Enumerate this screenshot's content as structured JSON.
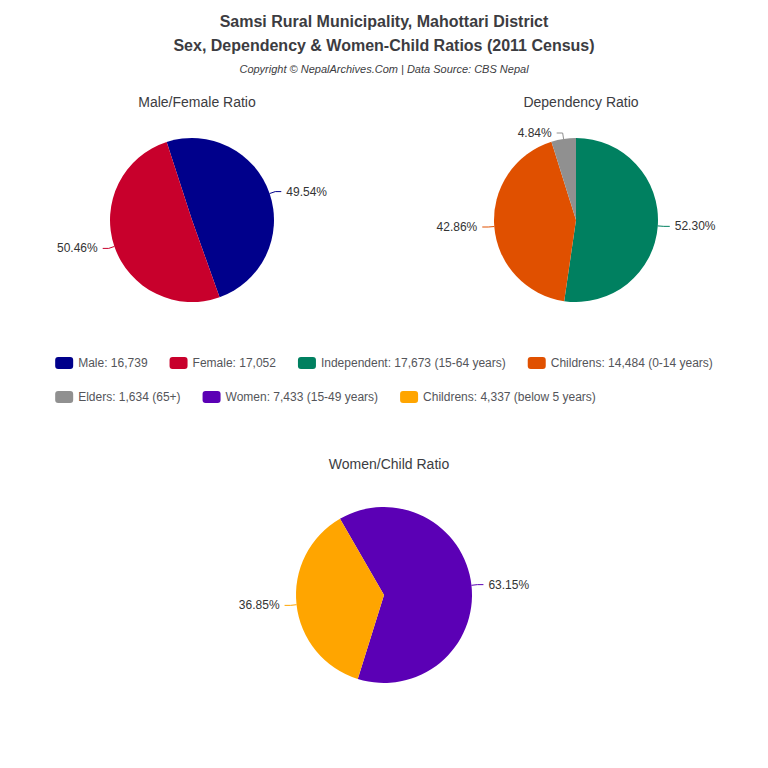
{
  "title": "Samsi Rural Municipality, Mahottari District",
  "subtitle": "Sex, Dependency & Women-Child Ratios (2011 Census)",
  "annotations": [
    "Copyright © NepalArchives.Com | Data Source: CBS Nepal"
  ],
  "legend": "center",
  "chart_data": [
    {
      "type": "pie",
      "title": "Male/Female Ratio",
      "categories": [
        "Male: 16,739",
        "Female: 17,052"
      ],
      "values": [
        49.54,
        50.46
      ],
      "value_labels": [
        "49.54%",
        "50.46%"
      ],
      "colors": [
        "#00008B",
        "#C8002C"
      ],
      "data_labels": true
    },
    {
      "type": "pie",
      "title": "Dependency Ratio",
      "categories": [
        "Independent: 17,673 (15-64 years)",
        "Childrens: 14,484 (0-14 years)",
        "Elders: 1,634 (65+)"
      ],
      "values": [
        52.3,
        42.86,
        4.84
      ],
      "value_labels": [
        "52.30%",
        "42.86%",
        "4.84%"
      ],
      "colors": [
        "#008060",
        "#E05000",
        "#909090"
      ],
      "data_labels": true
    },
    {
      "type": "pie",
      "title": "Women/Child Ratio",
      "categories": [
        "Women: 7,433 (15-49 years)",
        "Childrens: 4,337 (below 5 years)"
      ],
      "values": [
        63.15,
        36.85
      ],
      "value_labels": [
        "63.15%",
        "36.85%"
      ],
      "colors": [
        "#5B00B5",
        "#FFA500"
      ],
      "data_labels": true
    }
  ]
}
